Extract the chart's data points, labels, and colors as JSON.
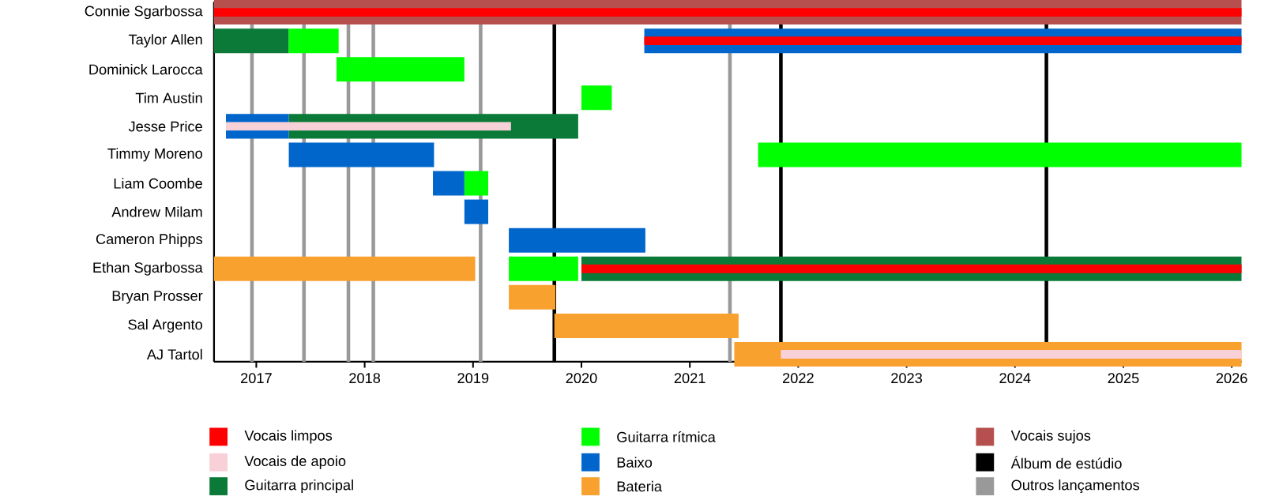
{
  "chart_data": {
    "type": "bar",
    "orientation": "horizontal",
    "legend": "bottom",
    "categories": [
      "Connie Sgarbossa",
      "Taylor Allen",
      "Dominick Larocca",
      "Tim Austin",
      "Jesse Price",
      "Timmy Moreno",
      "Liam Coombe",
      "Andrew Milam",
      "Cameron Phipps",
      "Ethan Sgarbossa",
      "Bryan Prosser",
      "Sal Argento",
      "AJ Tartol"
    ],
    "xlim": [
      2016.61,
      2026.09
    ],
    "xticks": [
      2017,
      2018,
      2019,
      2020,
      2021,
      2022,
      2023,
      2024,
      2025,
      2026
    ],
    "series": [
      {
        "name": "Vocais limpos",
        "color": "#ff0000",
        "base": [
          2016.61,
          2020.58,
          null,
          null,
          null,
          null,
          null,
          null,
          null,
          2020.0,
          null,
          null,
          null
        ],
        "values": [
          9.48,
          5.51,
          null,
          null,
          null,
          null,
          null,
          null,
          null,
          6.09,
          null,
          null,
          null
        ]
      },
      {
        "name": "Vocais de apoio",
        "color": "#f8d0d8",
        "base": [
          null,
          null,
          null,
          null,
          2016.72,
          null,
          null,
          null,
          null,
          null,
          null,
          null,
          2021.84
        ],
        "values": [
          null,
          null,
          null,
          null,
          2.63,
          null,
          null,
          null,
          null,
          null,
          null,
          null,
          4.25
        ]
      },
      {
        "name": "Guitarra principal",
        "color": "#0b7a38",
        "base": [
          null,
          2016.61,
          null,
          null,
          2017.3,
          null,
          null,
          null,
          null,
          2020.0,
          null,
          null,
          null
        ],
        "values": [
          null,
          0.69,
          null,
          null,
          2.67,
          null,
          null,
          null,
          null,
          6.09,
          null,
          null,
          null
        ]
      },
      {
        "name": "Guitarra rítmica",
        "color": "#00ff00",
        "base": [
          null,
          2017.3,
          2017.74,
          2020.0,
          null,
          2021.63,
          2018.92,
          null,
          null,
          2019.33,
          null,
          null,
          null
        ],
        "values": [
          null,
          0.46,
          1.18,
          0.28,
          null,
          4.46,
          0.22,
          null,
          null,
          0.64,
          null,
          null,
          null
        ]
      },
      {
        "name": "Baixo",
        "color": "#0066cc",
        "base": [
          null,
          2020.58,
          null,
          null,
          2016.72,
          2017.3,
          2018.63,
          2018.92,
          2019.33,
          null,
          null,
          null,
          null
        ],
        "values": [
          null,
          5.51,
          null,
          null,
          0.58,
          1.34,
          0.29,
          0.22,
          1.26,
          null,
          null,
          null,
          null
        ]
      },
      {
        "name": "Bateria",
        "color": "#f9a12f",
        "base": [
          null,
          null,
          null,
          null,
          null,
          null,
          null,
          null,
          null,
          2016.61,
          2019.33,
          2019.75,
          2021.41
        ],
        "values": [
          null,
          null,
          null,
          null,
          null,
          null,
          null,
          null,
          null,
          2.41,
          0.43,
          1.7,
          4.68
        ]
      },
      {
        "name": "Vocais sujos",
        "color": "#b5504f",
        "base": [
          2016.61,
          null,
          null,
          null,
          null,
          null,
          null,
          null,
          null,
          null,
          null,
          null,
          null
        ],
        "values": [
          9.48,
          null,
          null,
          null,
          null,
          null,
          null,
          null,
          null,
          null,
          null,
          null,
          null
        ]
      }
    ],
    "ref_lines": [
      {
        "axis": "x",
        "value": 2019.75,
        "label": "Álbum de estúdio",
        "color": "#000000"
      },
      {
        "axis": "x",
        "value": 2021.84,
        "color": "#000000"
      },
      {
        "axis": "x",
        "value": 2024.29,
        "color": "#000000"
      },
      {
        "axis": "x",
        "value": 2016.96,
        "label": "Outros lançamentos",
        "color": "#999999"
      },
      {
        "axis": "x",
        "value": 2017.44,
        "color": "#999999"
      },
      {
        "axis": "x",
        "value": 2017.85,
        "color": "#999999"
      },
      {
        "axis": "x",
        "value": 2018.08,
        "color": "#999999"
      },
      {
        "axis": "x",
        "value": 2019.07,
        "color": "#999999"
      },
      {
        "axis": "x",
        "value": 2021.37,
        "color": "#999999"
      }
    ]
  }
}
